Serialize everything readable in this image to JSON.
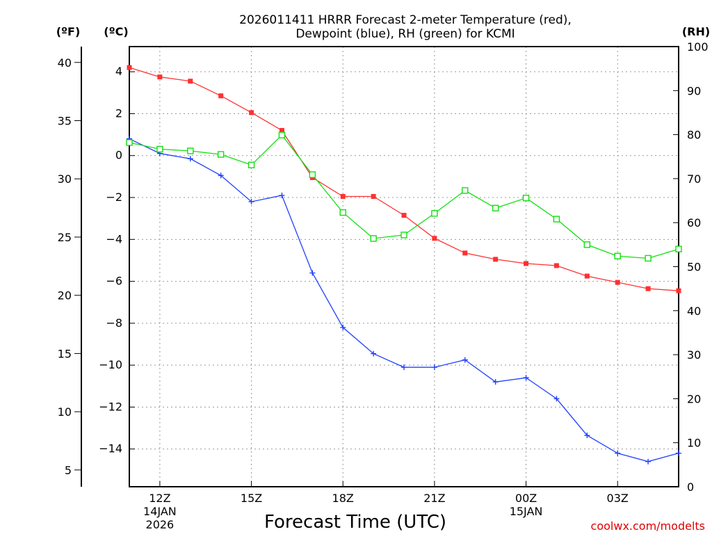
{
  "chart_data": {
    "type": "line",
    "title_line1": "2026011411 HRRR Forecast 2-meter Temperature (red),",
    "title_line2": "Dewpoint (blue), RH (green) for KCMI",
    "xlabel": "Forecast Time (UTC)",
    "credit": "coolwx.com/modelts",
    "units": {
      "fahrenheit": "(ºF)",
      "celsius": "(ºC)",
      "rh": "(RH)"
    },
    "x_hours": [
      11,
      12,
      13,
      14,
      15,
      16,
      17,
      18,
      19,
      20,
      21,
      22,
      23,
      24,
      25,
      26,
      27,
      28,
      29
    ],
    "x_ticks": [
      {
        "hour": 12,
        "label": "12Z",
        "date": "14JAN",
        "year": "2026"
      },
      {
        "hour": 15,
        "label": "15Z",
        "date": "",
        "year": ""
      },
      {
        "hour": 18,
        "label": "18Z",
        "date": "",
        "year": ""
      },
      {
        "hour": 21,
        "label": "21Z",
        "date": "",
        "year": ""
      },
      {
        "hour": 24,
        "label": "00Z",
        "date": "15JAN",
        "year": ""
      },
      {
        "hour": 27,
        "label": "03Z",
        "date": "",
        "year": ""
      }
    ],
    "xlim": [
      11,
      29
    ],
    "celsius_axis": {
      "ylim": [
        -15.8,
        5.2
      ],
      "ticks": [
        4,
        2,
        0,
        -2,
        -4,
        -6,
        -8,
        -10,
        -12,
        -14
      ],
      "labels": [
        "4",
        "2",
        "0",
        "−2",
        "−4",
        "−6",
        "−8",
        "−10",
        "−12",
        "−14"
      ]
    },
    "fahrenheit_axis": {
      "ticks": [
        40,
        35,
        30,
        25,
        20,
        15,
        10,
        5
      ]
    },
    "rh_axis": {
      "ylim": [
        0,
        100
      ],
      "ticks": [
        100,
        90,
        80,
        70,
        60,
        50,
        40,
        30,
        20,
        10,
        0
      ]
    },
    "series": [
      {
        "name": "Temperature",
        "units": "C",
        "color": "#ff3030",
        "marker": "filled-square",
        "values": [
          4.2,
          3.75,
          3.55,
          2.85,
          2.05,
          1.2,
          -1.05,
          -1.95,
          -1.95,
          -2.85,
          -3.95,
          -4.65,
          -4.95,
          -5.15,
          -5.25,
          -5.75,
          -6.05,
          -6.35,
          -6.45
        ]
      },
      {
        "name": "Dewpoint",
        "units": "C",
        "color": "#2040ff",
        "marker": "plus",
        "values": [
          0.8,
          0.1,
          -0.15,
          -0.95,
          -2.2,
          -1.9,
          -5.6,
          -8.2,
          -9.45,
          -10.1,
          -10.1,
          -9.75,
          -10.8,
          -10.6,
          -11.6,
          -13.35,
          -14.2,
          -14.6,
          -14.2
        ]
      },
      {
        "name": "RH",
        "units": "%",
        "color": "#10e010",
        "marker": "open-square",
        "values": [
          78.2,
          76.7,
          76.3,
          75.5,
          73.1,
          79.9,
          70.9,
          62.3,
          56.4,
          57.2,
          62.1,
          67.3,
          63.3,
          65.6,
          60.8,
          55.0,
          52.4,
          51.9,
          54.0
        ]
      }
    ]
  }
}
